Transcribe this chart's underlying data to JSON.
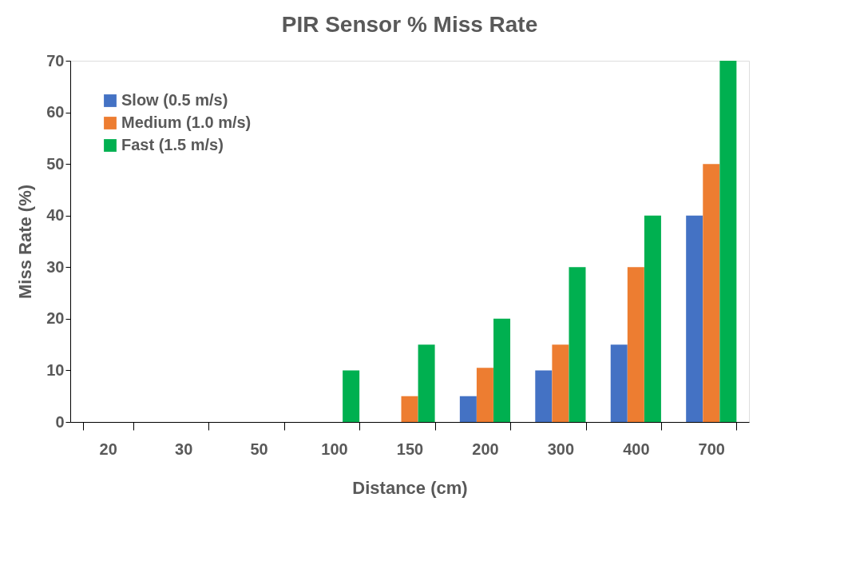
{
  "chart_data": {
    "type": "bar",
    "title": "PIR Sensor % Miss Rate",
    "xlabel": "Distance (cm)",
    "ylabel": "Miss Rate (%)",
    "categories": [
      "20",
      "30",
      "50",
      "100",
      "150",
      "200",
      "300",
      "400",
      "700"
    ],
    "series": [
      {
        "name": "Slow (0.5 m/s)",
        "color": "#4472c4",
        "values": [
          0,
          0,
          0,
          0,
          0,
          5,
          10,
          15,
          40
        ]
      },
      {
        "name": "Medium (1.0 m/s)",
        "color": "#ed7d31",
        "values": [
          0,
          0,
          0,
          0,
          5,
          10.5,
          15,
          30,
          50
        ]
      },
      {
        "name": "Fast (1.5 m/s)",
        "color": "#00b050",
        "values": [
          0,
          0,
          0,
          10,
          15,
          20,
          30,
          40,
          70
        ]
      }
    ],
    "ylim": [
      0,
      70
    ],
    "yticks": [
      0,
      10,
      20,
      30,
      40,
      50,
      60,
      70
    ],
    "grid": false,
    "legend": "top left"
  }
}
